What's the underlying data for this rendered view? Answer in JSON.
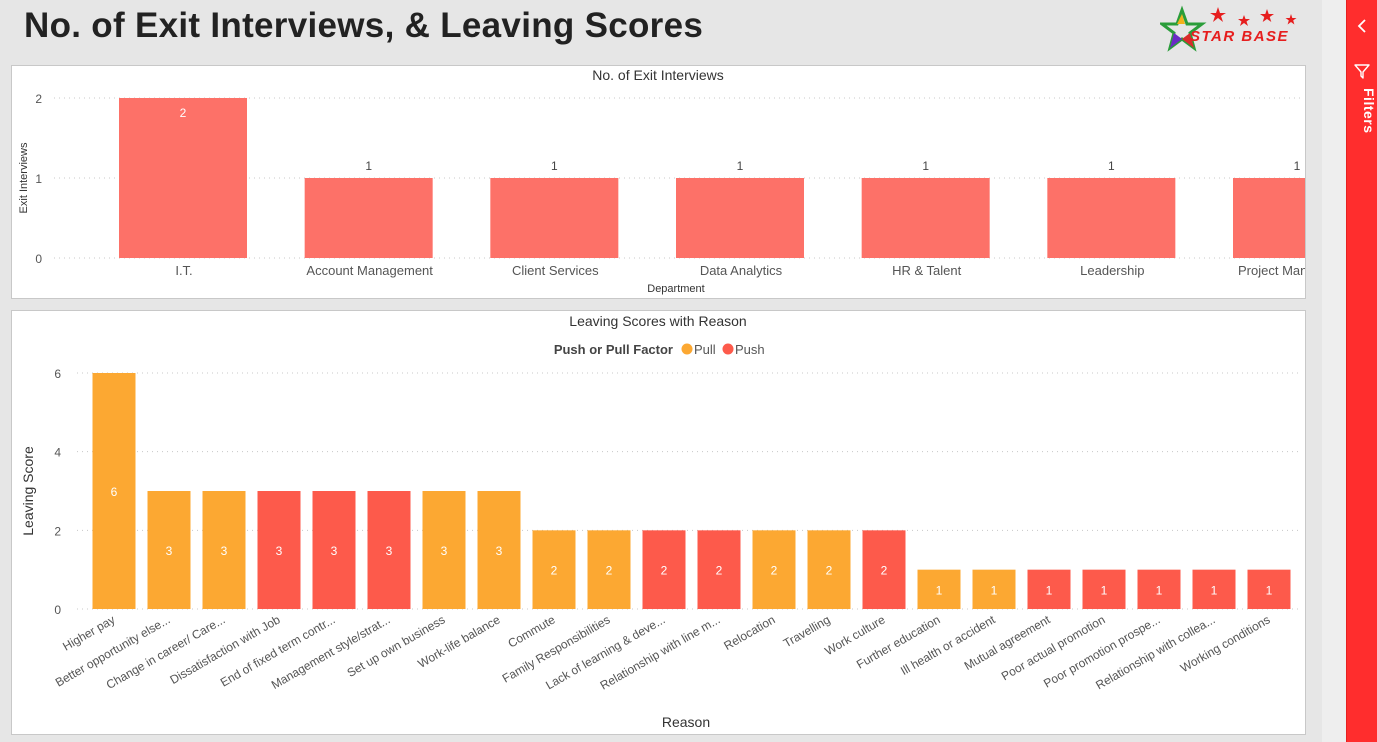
{
  "page": {
    "title": "No. of Exit Interviews, & Leaving Scores",
    "logo_text": "STAR BASE"
  },
  "filters_pane": {
    "label": "Filters",
    "collapse_icon": "chevron-left-icon",
    "filter_icon": "funnel-icon",
    "background": "#ff2d2d"
  },
  "chart_data": [
    {
      "type": "bar",
      "title": "No. of Exit Interviews",
      "xlabel": "Department",
      "ylabel": "Exit Interviews",
      "categories": [
        "I.T.",
        "Account Management",
        "Client Services",
        "Data Analytics",
        "HR & Talent",
        "Leadership",
        "Project Management"
      ],
      "values": [
        2,
        1,
        1,
        1,
        1,
        1,
        1
      ],
      "yticks": [
        0,
        1,
        2
      ],
      "ylim": [
        0,
        2
      ],
      "grid": true,
      "color": "#fd7168"
    },
    {
      "type": "bar",
      "title": "Leaving Scores with Reason",
      "xlabel": "Reason",
      "ylabel": "Leaving Score",
      "legend": {
        "title": "Push or Pull Factor",
        "position": "top-center",
        "items": [
          {
            "name": "Pull",
            "color": "#fca832"
          },
          {
            "name": "Push",
            "color": "#fd5a4b"
          }
        ]
      },
      "categories": [
        "Higher pay",
        "Better opportunity else...",
        "Change in career/ Care...",
        "Dissatisfaction with Job",
        "End of fixed term contr...",
        "Management style/strat...",
        "Set up own business",
        "Work-life balance",
        "Commute",
        "Family Responsibilities",
        "Lack of learning & deve...",
        "Relationship with line m...",
        "Relocation",
        "Travelling",
        "Work culture",
        "Further education",
        "Ill health or accident",
        "Mutual agreement",
        "Poor actual promotion",
        "Poor promotion prospe...",
        "Relationship with collea...",
        "Working conditions"
      ],
      "values": [
        6,
        3,
        3,
        3,
        3,
        3,
        3,
        3,
        2,
        2,
        2,
        2,
        2,
        2,
        2,
        1,
        1,
        1,
        1,
        1,
        1,
        1
      ],
      "factor": [
        "Pull",
        "Pull",
        "Pull",
        "Push",
        "Push",
        "Push",
        "Pull",
        "Pull",
        "Pull",
        "Pull",
        "Push",
        "Push",
        "Pull",
        "Pull",
        "Push",
        "Pull",
        "Pull",
        "Push",
        "Push",
        "Push",
        "Push",
        "Push"
      ],
      "yticks": [
        0,
        2,
        4,
        6
      ],
      "ylim": [
        0,
        6
      ],
      "grid": true
    }
  ]
}
